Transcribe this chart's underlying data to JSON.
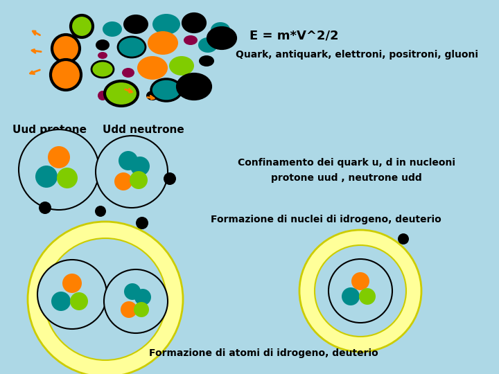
{
  "bg_color": "#add8e6",
  "title1": "E = m*V^2/2",
  "title2": "Quark, antiquark, elettroni, positroni, gluoni",
  "label_protone": "Uud protone",
  "label_neutrone": "Udd neutrone",
  "text_confinamento": "Confinamento dei quark u, d in nucleoni\n       protone uud , neutrone udd",
  "text_nuclei": "Formazione di nuclei di idrogeno, deuterio",
  "text_atomi": "Formazione di atomi di idrogeno, deuterio",
  "orange": "#FF8000",
  "teal": "#008B8B",
  "green": "#80CC00",
  "black": "#000000",
  "dark_red": "#8B0045",
  "yellow": "#FFFF99",
  "yellow_edge": "#CCCC00"
}
